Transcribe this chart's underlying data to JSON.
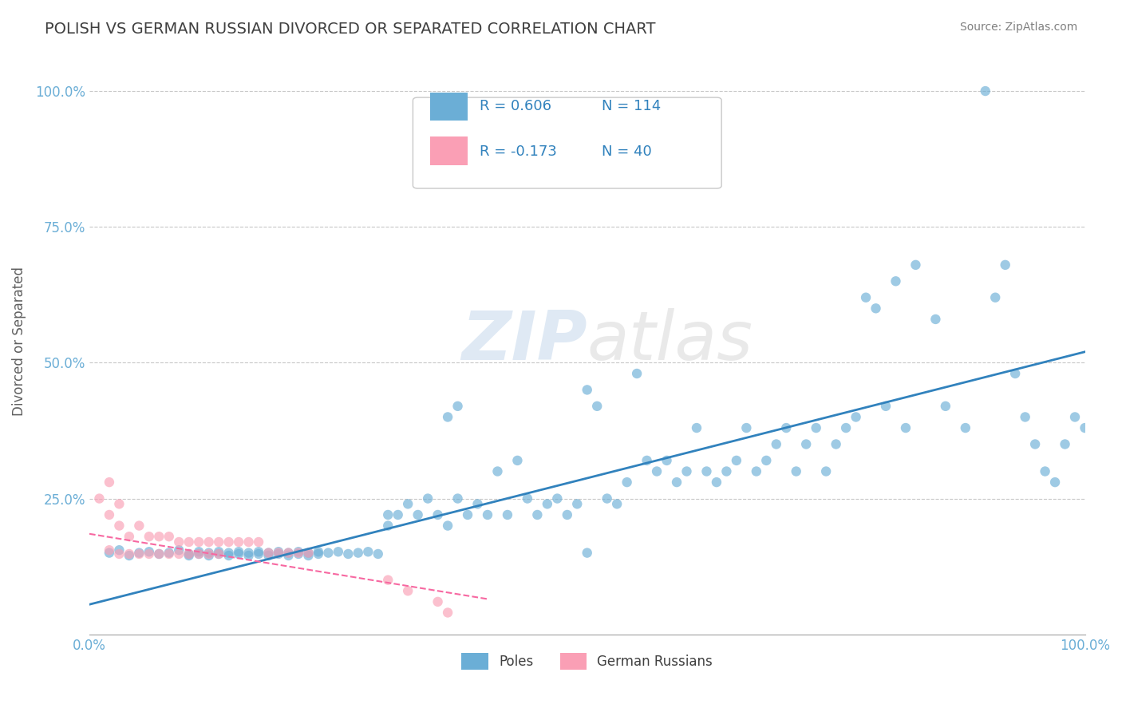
{
  "title": "POLISH VS GERMAN RUSSIAN DIVORCED OR SEPARATED CORRELATION CHART",
  "source": "Source: ZipAtlas.com",
  "ylabel": "Divorced or Separated",
  "x_tick_labels": [
    "0.0%",
    "100.0%"
  ],
  "y_tick_positions": [
    0.25,
    0.5,
    0.75,
    1.0
  ],
  "xlim": [
    0.0,
    1.0
  ],
  "ylim": [
    0.0,
    1.08
  ],
  "legend_r1": "R = 0.606",
  "legend_n1": "N = 114",
  "legend_r2": "R = -0.173",
  "legend_n2": "N = 40",
  "blue_color": "#6baed6",
  "pink_color": "#fa9fb5",
  "blue_line_color": "#3182bd",
  "pink_line_color": "#f768a1",
  "grid_color": "#c8c8c8",
  "title_color": "#404040",
  "label_color": "#6baed6",
  "watermark_zip": "ZIP",
  "watermark_atlas": "atlas",
  "blue_scatter_x": [
    0.02,
    0.03,
    0.04,
    0.05,
    0.06,
    0.07,
    0.08,
    0.09,
    0.1,
    0.11,
    0.11,
    0.12,
    0.12,
    0.13,
    0.13,
    0.14,
    0.14,
    0.15,
    0.15,
    0.16,
    0.16,
    0.17,
    0.17,
    0.18,
    0.18,
    0.19,
    0.19,
    0.2,
    0.2,
    0.21,
    0.21,
    0.22,
    0.22,
    0.23,
    0.23,
    0.24,
    0.25,
    0.26,
    0.27,
    0.28,
    0.29,
    0.3,
    0.3,
    0.31,
    0.32,
    0.33,
    0.34,
    0.35,
    0.36,
    0.37,
    0.38,
    0.39,
    0.4,
    0.41,
    0.42,
    0.43,
    0.44,
    0.45,
    0.46,
    0.47,
    0.48,
    0.49,
    0.5,
    0.51,
    0.52,
    0.53,
    0.54,
    0.55,
    0.56,
    0.57,
    0.58,
    0.59,
    0.6,
    0.61,
    0.62,
    0.63,
    0.64,
    0.65,
    0.66,
    0.67,
    0.68,
    0.69,
    0.7,
    0.71,
    0.72,
    0.73,
    0.74,
    0.75,
    0.76,
    0.77,
    0.78,
    0.79,
    0.8,
    0.81,
    0.82,
    0.83,
    0.85,
    0.86,
    0.88,
    0.9,
    0.91,
    0.92,
    0.93,
    0.94,
    0.95,
    0.96,
    0.97,
    0.98,
    0.99,
    1.0,
    0.36,
    0.37,
    0.5,
    0.1
  ],
  "blue_scatter_y": [
    0.15,
    0.155,
    0.145,
    0.15,
    0.152,
    0.148,
    0.15,
    0.155,
    0.145,
    0.148,
    0.152,
    0.15,
    0.145,
    0.148,
    0.152,
    0.15,
    0.145,
    0.148,
    0.152,
    0.15,
    0.145,
    0.148,
    0.152,
    0.15,
    0.145,
    0.148,
    0.152,
    0.15,
    0.145,
    0.148,
    0.152,
    0.15,
    0.145,
    0.148,
    0.152,
    0.15,
    0.152,
    0.148,
    0.15,
    0.152,
    0.148,
    0.22,
    0.2,
    0.22,
    0.24,
    0.22,
    0.25,
    0.22,
    0.2,
    0.25,
    0.22,
    0.24,
    0.22,
    0.3,
    0.22,
    0.32,
    0.25,
    0.22,
    0.24,
    0.25,
    0.22,
    0.24,
    0.45,
    0.42,
    0.25,
    0.24,
    0.28,
    0.48,
    0.32,
    0.3,
    0.32,
    0.28,
    0.3,
    0.38,
    0.3,
    0.28,
    0.3,
    0.32,
    0.38,
    0.3,
    0.32,
    0.35,
    0.38,
    0.3,
    0.35,
    0.38,
    0.3,
    0.35,
    0.38,
    0.4,
    0.62,
    0.6,
    0.42,
    0.65,
    0.38,
    0.68,
    0.58,
    0.42,
    0.38,
    1.0,
    0.62,
    0.68,
    0.48,
    0.4,
    0.35,
    0.3,
    0.28,
    0.35,
    0.4,
    0.38,
    0.4,
    0.42,
    0.15,
    0.148
  ],
  "pink_scatter_x": [
    0.01,
    0.02,
    0.02,
    0.03,
    0.03,
    0.03,
    0.04,
    0.04,
    0.05,
    0.05,
    0.06,
    0.06,
    0.07,
    0.07,
    0.08,
    0.08,
    0.09,
    0.09,
    0.1,
    0.1,
    0.11,
    0.11,
    0.12,
    0.12,
    0.13,
    0.13,
    0.14,
    0.15,
    0.16,
    0.17,
    0.18,
    0.19,
    0.2,
    0.21,
    0.22,
    0.3,
    0.32,
    0.35,
    0.36,
    0.02
  ],
  "pink_scatter_y": [
    0.25,
    0.155,
    0.22,
    0.148,
    0.24,
    0.2,
    0.148,
    0.18,
    0.148,
    0.2,
    0.148,
    0.18,
    0.148,
    0.18,
    0.148,
    0.18,
    0.148,
    0.17,
    0.148,
    0.17,
    0.148,
    0.17,
    0.148,
    0.17,
    0.148,
    0.17,
    0.17,
    0.17,
    0.17,
    0.17,
    0.15,
    0.15,
    0.15,
    0.15,
    0.15,
    0.1,
    0.08,
    0.06,
    0.04,
    0.28
  ],
  "blue_line_x": [
    0.0,
    1.0
  ],
  "blue_line_y": [
    0.055,
    0.52
  ],
  "pink_line_x": [
    0.0,
    0.4
  ],
  "pink_line_y": [
    0.185,
    0.065
  ]
}
